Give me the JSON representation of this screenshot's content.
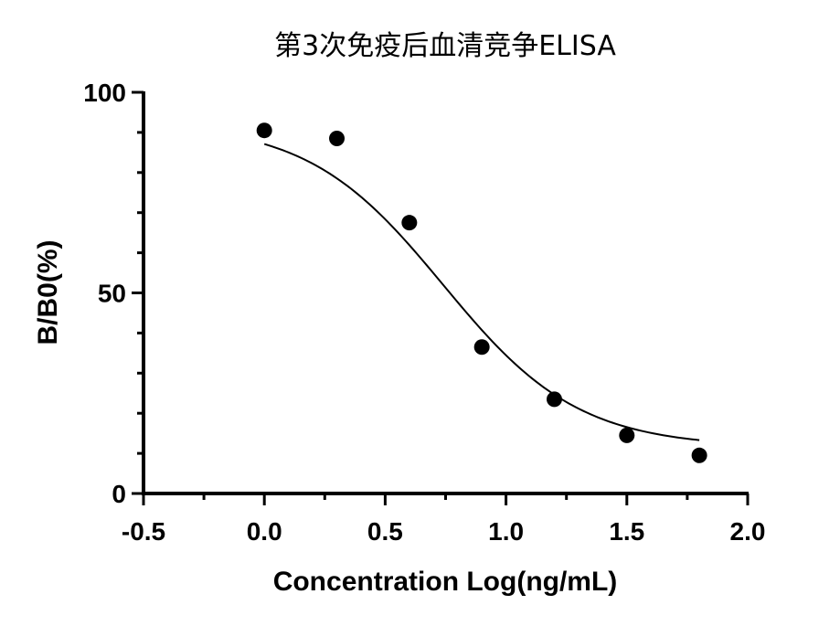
{
  "chart_data": {
    "type": "scatter",
    "title": "第3次免疫后血清竞争ELISA",
    "xlabel": "Concentration Log(ng/mL)",
    "ylabel": "B/B0(%)",
    "xlim": [
      -0.5,
      2.0
    ],
    "ylim": [
      0,
      100
    ],
    "x_ticks": [
      -0.5,
      0.0,
      0.5,
      1.0,
      1.5,
      2.0
    ],
    "x_tick_labels": [
      "-0.5",
      "0.0",
      "0.5",
      "1.0",
      "1.5",
      "2.0"
    ],
    "y_ticks": [
      0,
      50,
      100
    ],
    "y_tick_labels": [
      "0",
      "50",
      "100"
    ],
    "y_minor_step": 10,
    "x_minor_step": 0.25,
    "grid": false,
    "series": [
      {
        "x": [
          0.0,
          0.3,
          0.6,
          0.9,
          1.2,
          1.5,
          1.8
        ],
        "y": [
          90.5,
          88.5,
          67.5,
          36.5,
          23.5,
          14.5,
          9.5
        ]
      }
    ],
    "fit_curve": {
      "model": "4PL",
      "top": 92.5,
      "bottom": 11.5,
      "logIC50": 0.74,
      "hill_slope": 1.55,
      "x_range": [
        0.0,
        1.8
      ]
    }
  }
}
